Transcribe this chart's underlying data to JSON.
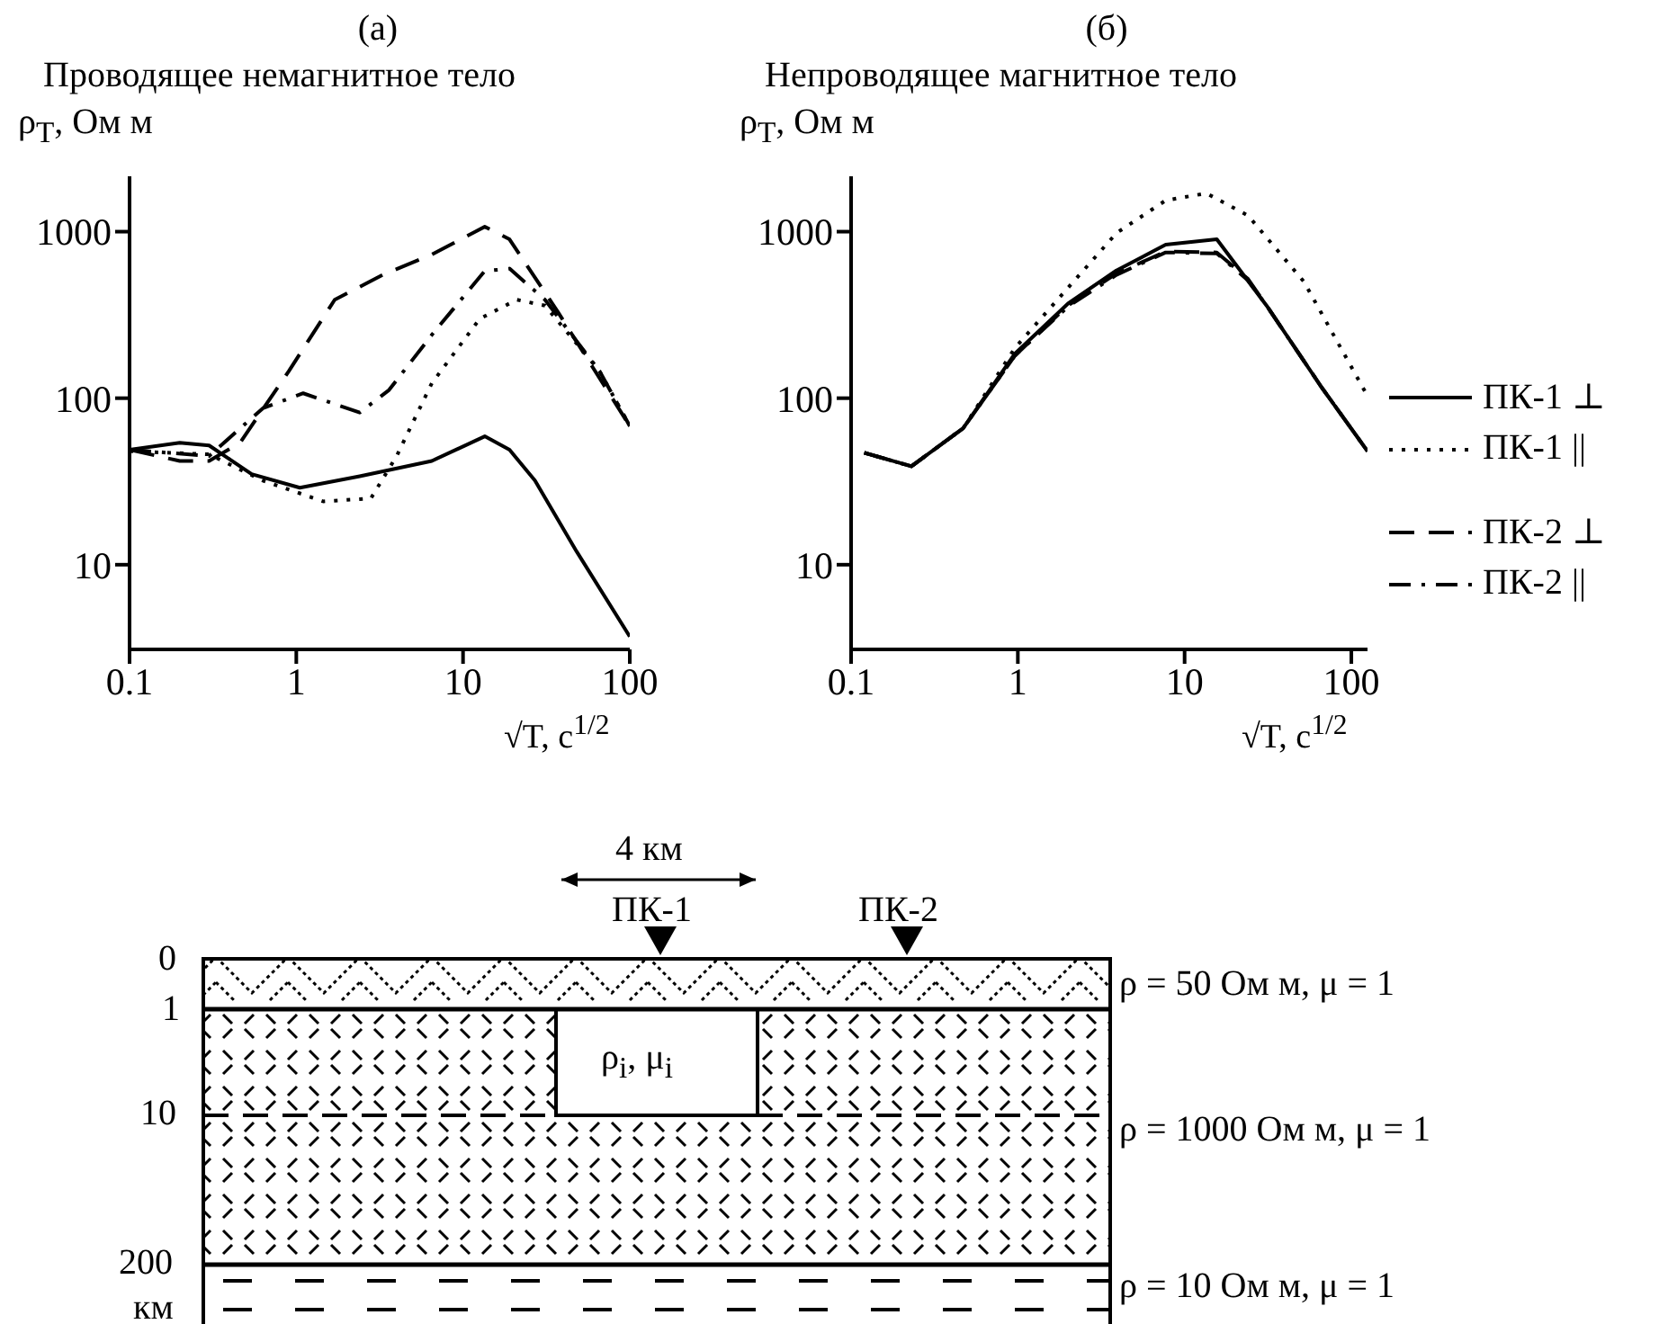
{
  "chart_data": [
    {
      "type": "line",
      "title": "(а)",
      "subtitle": "Проводящее немагнитное тело",
      "ylabel": "ρ$_{T}$, Ом м",
      "xlabel": "√T, с$^{1/2}$",
      "log": "xy",
      "xlim": [
        0.1,
        100
      ],
      "xticks": [
        0.1,
        1,
        10,
        100
      ],
      "ylim": [
        3.1,
        2150
      ],
      "yticks": [
        10,
        100,
        1000
      ],
      "series": [
        {
          "color": "#000000",
          "line_style": "solid",
          "x": [
            0.1,
            0.2,
            0.3,
            0.54,
            1.05,
            2.4,
            6.5,
            13.5,
            19,
            27,
            48,
            100
          ],
          "values": [
            49,
            54,
            52,
            35,
            29,
            34,
            42,
            59,
            49,
            32,
            12,
            3.7
          ]
        },
        {
          "color": "#000000",
          "line_style": "dotted",
          "x": [
            0.1,
            0.3,
            0.63,
            1.45,
            2.8,
            4,
            6.5,
            12.6,
            21,
            31,
            66,
            100
          ],
          "values": [
            48,
            46,
            32,
            24,
            25,
            45,
            123,
            300,
            390,
            360,
            145,
            68
          ]
        },
        {
          "color": "#000000",
          "line_style": "dashed",
          "x": [
            0.1,
            0.2,
            0.3,
            0.46,
            0.9,
            1.7,
            3.3,
            6.5,
            13.5,
            19,
            37,
            100
          ],
          "values": [
            49,
            42,
            42,
            54,
            145,
            390,
            550,
            730,
            1070,
            900,
            330,
            68
          ]
        },
        {
          "color": "#000000",
          "line_style": "dashdot",
          "x": [
            0.1,
            0.3,
            0.63,
            1.1,
            2.4,
            3.6,
            6.5,
            13.5,
            19,
            31,
            66,
            100
          ],
          "values": [
            49,
            45,
            87,
            107,
            82,
            112,
            240,
            580,
            600,
            390,
            145,
            68
          ]
        }
      ]
    },
    {
      "type": "line",
      "title": "(б)",
      "subtitle": "Непроводящее магнитное тело",
      "ylabel": "ρ$_{T}$, Ом м",
      "xlabel": "√T, с$^{1/2}$",
      "log": "xy",
      "xlim": [
        0.1,
        125
      ],
      "xticks": [
        0.1,
        1,
        10,
        100
      ],
      "ylim": [
        3.1,
        2150
      ],
      "yticks": [
        10,
        100,
        1000
      ],
      "legend": "right",
      "series": [
        {
          "name": "ПК-1 ⊥",
          "color": "#000000",
          "line_style": "solid",
          "x": [
            0.12,
            0.23,
            0.47,
            0.96,
            2,
            3.9,
            7.7,
            15.6,
            31,
            66,
            125
          ],
          "values": [
            47,
            39,
            66,
            185,
            370,
            585,
            835,
            900,
            360,
            117,
            48
          ]
        },
        {
          "name": "ПК-1 ||",
          "color": "#000000",
          "line_style": "dotted",
          "x": [
            0.12,
            0.23,
            0.47,
            0.96,
            2,
            3.9,
            7.7,
            13.5,
            24,
            52,
            125
          ],
          "values": [
            47,
            39,
            66,
            200,
            460,
            980,
            1540,
            1700,
            1250,
            500,
            103
          ]
        },
        {
          "name": "ПК-2 ⊥",
          "color": "#000000",
          "line_style": "dashed",
          "x": [
            0.12,
            0.23,
            0.47,
            0.96,
            2,
            3.9,
            7.7,
            15.6,
            24,
            31,
            66,
            125
          ],
          "values": [
            47,
            39,
            66,
            180,
            360,
            560,
            760,
            750,
            520,
            360,
            117,
            48
          ]
        },
        {
          "name": "ПК-2 ||",
          "color": "#000000",
          "line_style": "dashdot",
          "x": [
            0.12,
            0.23,
            0.47,
            0.96,
            2,
            3.9,
            7.7,
            15.6,
            24,
            31,
            66,
            125
          ],
          "values": [
            47,
            39,
            66,
            180,
            355,
            550,
            750,
            740,
            510,
            360,
            117,
            48
          ]
        }
      ]
    },
    {
      "type": "other",
      "annotations": [
        "4 км",
        "ПК-1",
        "ПК-2",
        "0",
        "1",
        "10",
        "200",
        "км",
        "ρ$_{i}$, μ$_{i}$",
        "ρ = 50 Ом м, μ = 1",
        "ρ = 1000 Ом м, μ = 1",
        "ρ = 10 Ом м, μ = 1"
      ]
    }
  ]
}
